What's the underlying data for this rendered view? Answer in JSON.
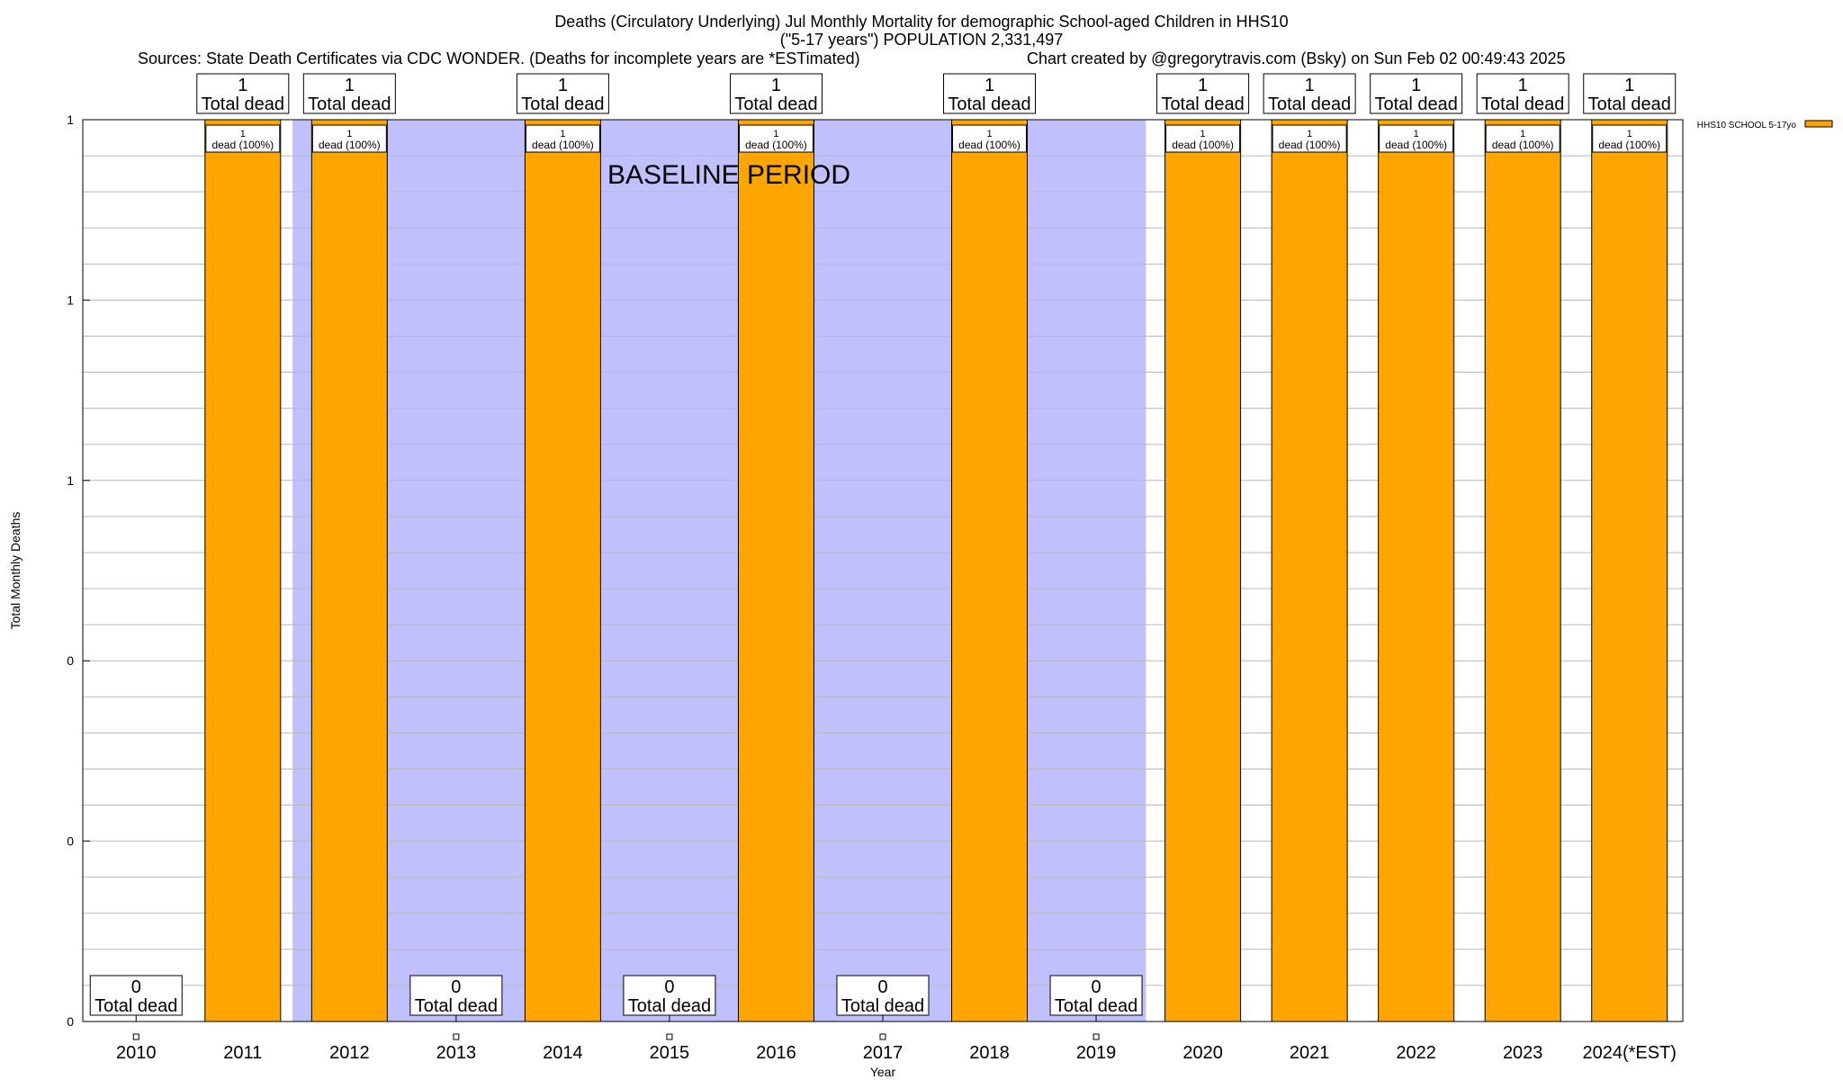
{
  "header": {
    "title_line1": "Deaths (Circulatory Underlying) Jul Monthly Mortality for demographic School-aged Children in HHS10",
    "title_line2": "(\"5-17 years\") POPULATION 2,331,497",
    "sources": "Sources: State Death Certificates via CDC WONDER. (Deaths for incomplete years are *ESTimated)",
    "credit": "Chart created by @gregorytravis.com (Bsky) on Sun Feb 02 00:49:43 2025"
  },
  "chart_data": {
    "type": "bar",
    "title": "Deaths (Circulatory Underlying) Jul Monthly Mortality for demographic School-aged Children in HHS10",
    "xlabel": "Year",
    "ylabel": "Total Monthly Deaths",
    "categories": [
      "2010",
      "2011",
      "2012",
      "2013",
      "2014",
      "2015",
      "2016",
      "2017",
      "2018",
      "2019",
      "2020",
      "2021",
      "2022",
      "2023",
      "2024(*EST)"
    ],
    "series": [
      {
        "name": "HHS10 SCHOOL 5-17yo",
        "color": "#ffa500",
        "values": [
          0,
          1,
          1,
          0,
          1,
          0,
          1,
          0,
          1,
          0,
          1,
          1,
          1,
          1,
          1
        ]
      }
    ],
    "total_labels": [
      "0",
      "1",
      "1",
      "0",
      "1",
      "0",
      "1",
      "0",
      "1",
      "0",
      "1",
      "1",
      "1",
      "1",
      "1"
    ],
    "total_suffix": "Total dead",
    "inner_labels": [
      "",
      "1",
      "1",
      "",
      "1",
      "",
      "1",
      "",
      "1",
      "",
      "1",
      "1",
      "1",
      "1",
      "1"
    ],
    "inner_suffix": "dead (100%)",
    "ylim": [
      0,
      1
    ],
    "y_tick_labels": [
      "0",
      "0",
      "0",
      "1",
      "1",
      "1"
    ],
    "grid": true,
    "legend_position": "top-right",
    "baseline_period": {
      "label": "BASELINE PERIOD",
      "from": "2012",
      "to": "2019",
      "color": "#c0c0ff"
    }
  }
}
